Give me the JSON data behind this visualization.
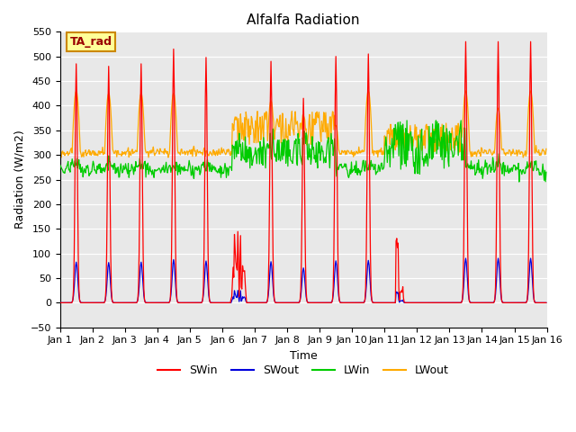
{
  "title": "Alfalfa Radiation",
  "xlabel": "Time",
  "ylabel": "Radiation (W/m2)",
  "ylim": [
    -50,
    550
  ],
  "xlim": [
    0,
    15
  ],
  "xtick_labels": [
    "Jan 1",
    "Jan 2",
    "Jan 3",
    "Jan 4",
    "Jan 5",
    "Jan 6",
    "Jan 7",
    "Jan 8",
    "Jan 9",
    "Jan 10",
    "Jan 11",
    "Jan 12",
    "Jan 13",
    "Jan 14",
    "Jan 15",
    "Jan 16"
  ],
  "ytick_values": [
    -50,
    0,
    50,
    100,
    150,
    200,
    250,
    300,
    350,
    400,
    450,
    500,
    550
  ],
  "colors": {
    "SWin": "#ff0000",
    "SWout": "#0000dd",
    "LWin": "#00cc00",
    "LWout": "#ffaa00"
  },
  "bg_color": "#e8e8e8",
  "annotation_text": "TA_rad",
  "annotation_bg": "#ffff99",
  "annotation_border": "#cc8800"
}
